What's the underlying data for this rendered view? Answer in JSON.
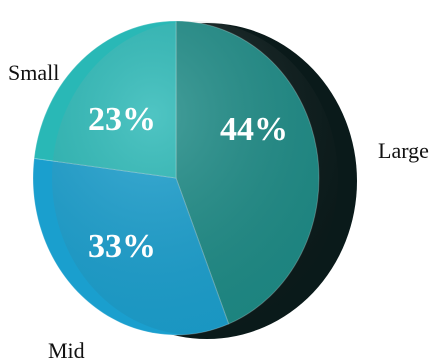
{
  "chart_data": {
    "type": "pie",
    "slices": [
      {
        "label": "Large",
        "value": 44,
        "display": "44%",
        "color": "#1d8b86"
      },
      {
        "label": "Mid",
        "value": 33,
        "display": "33%",
        "color": "#1a9fce"
      },
      {
        "label": "Small",
        "value": 23,
        "display": "23%",
        "color": "#29b8b6"
      }
    ],
    "unit": "%",
    "style": "3d-tilted",
    "legend": "none"
  }
}
